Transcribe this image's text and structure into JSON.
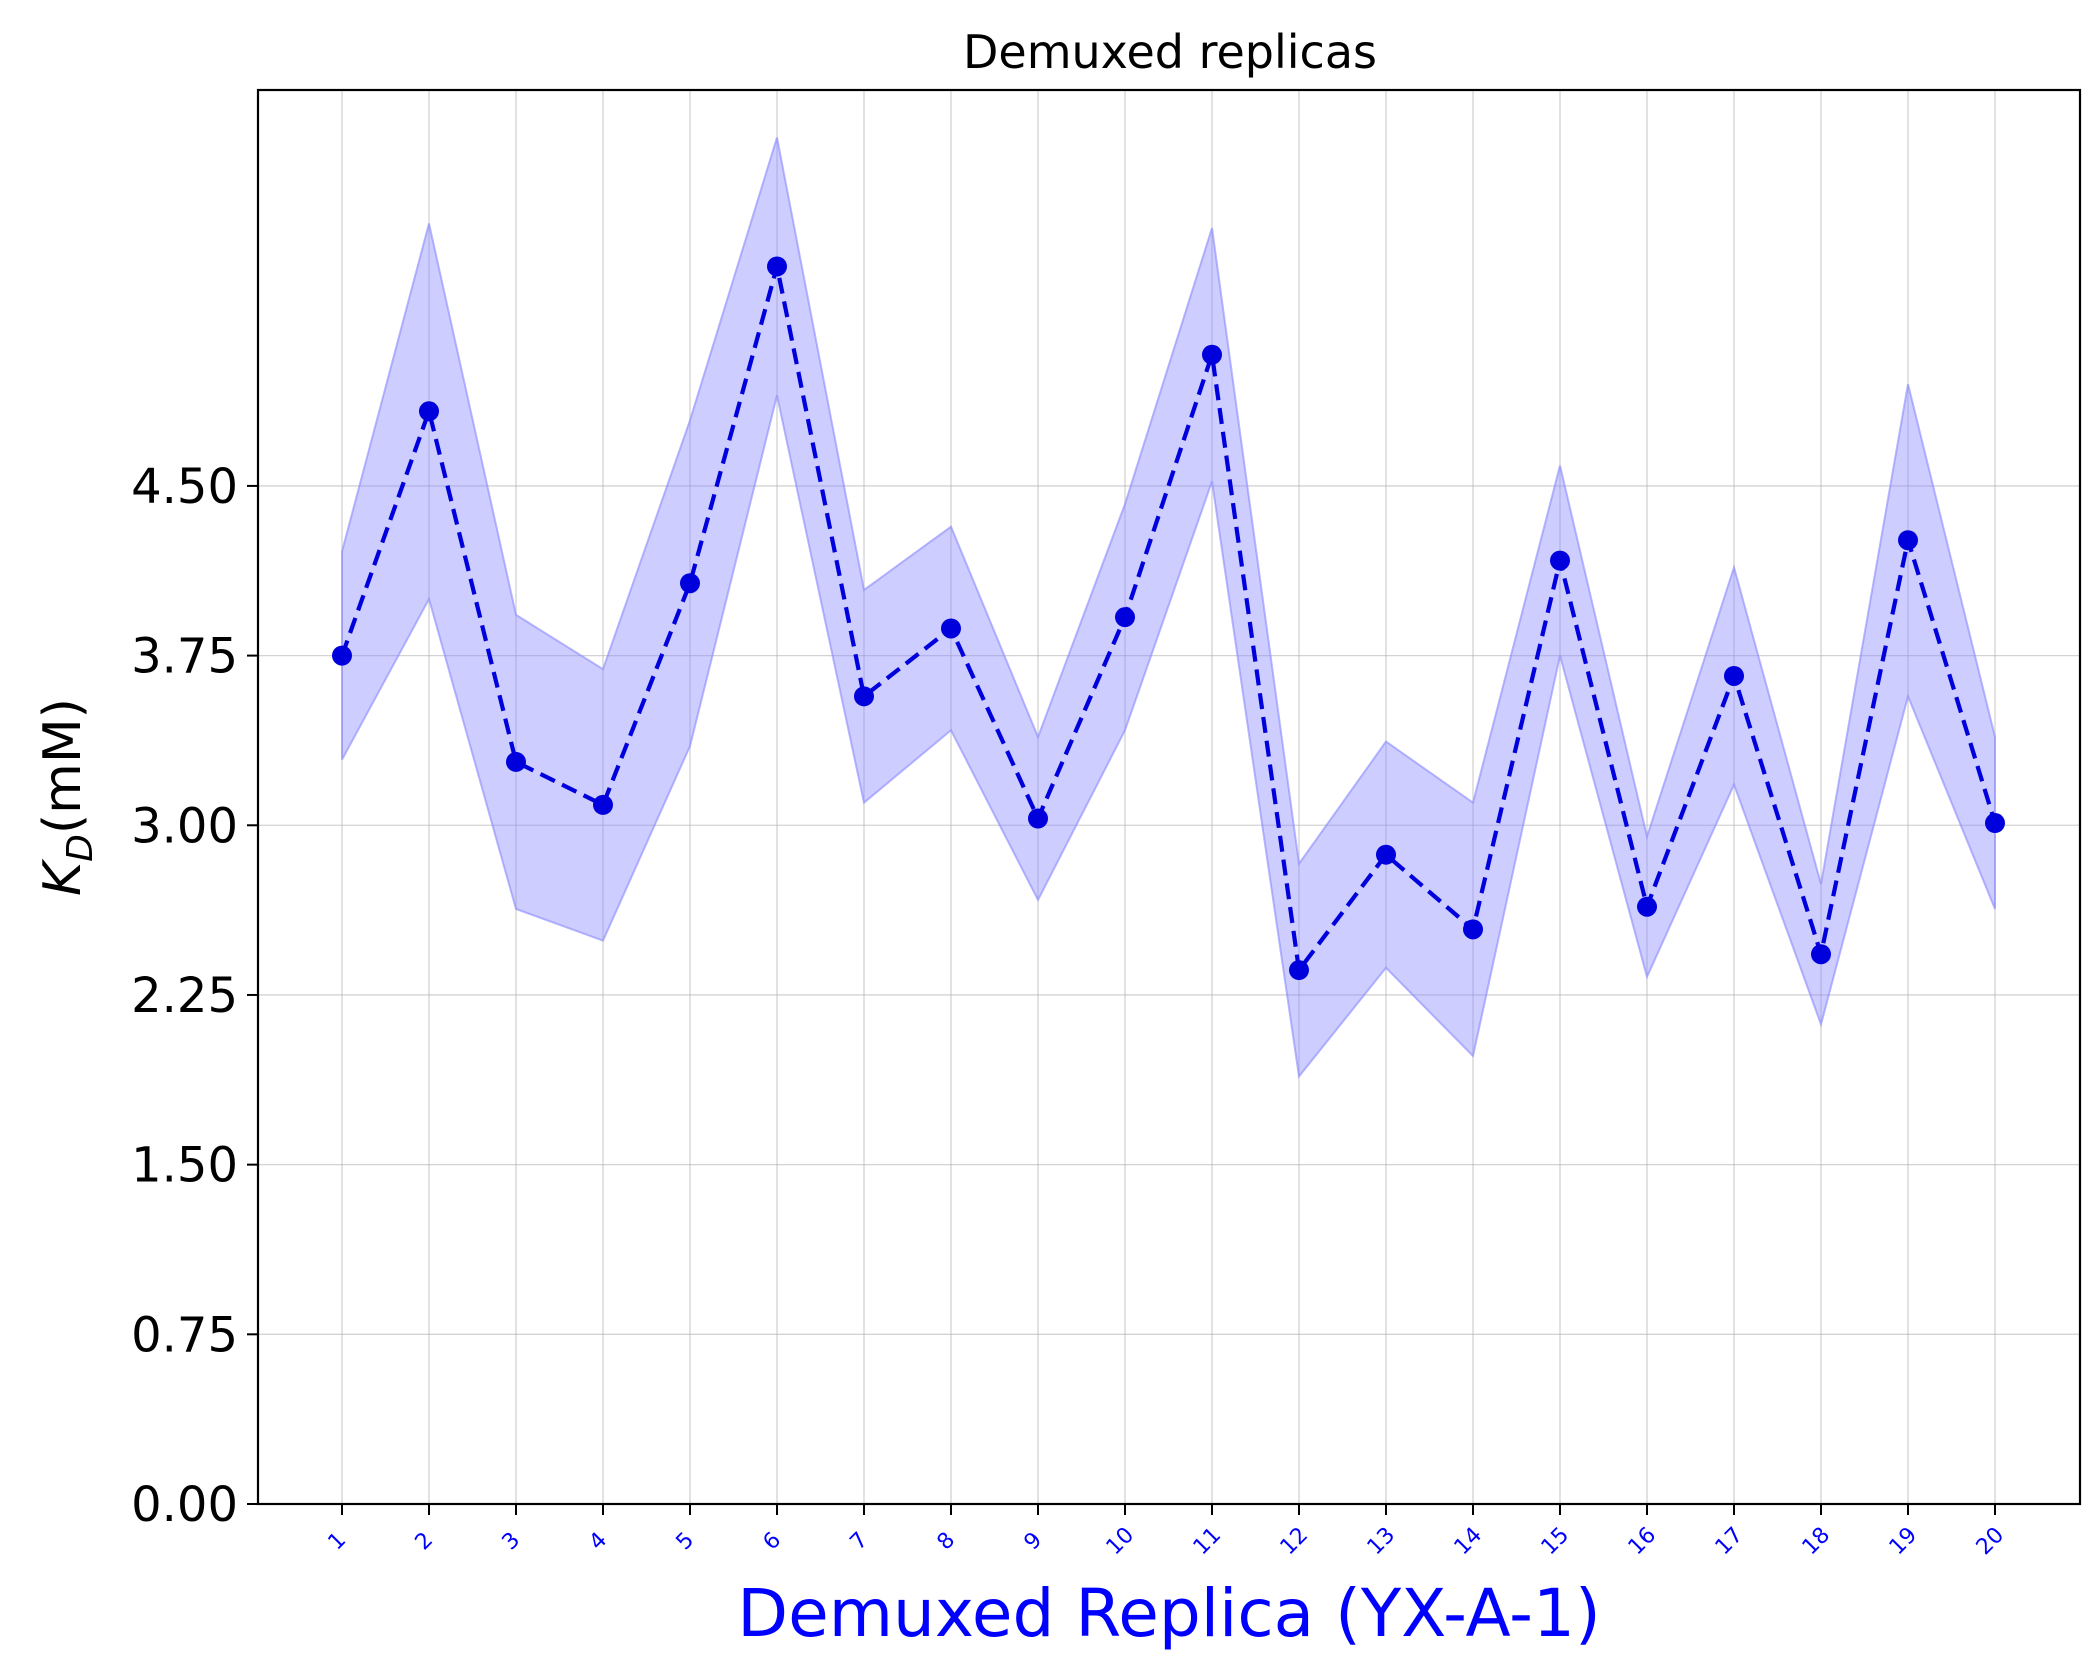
{
  "chart_data": {
    "type": "line",
    "title": "Demuxed replicas",
    "xlabel": "Demuxed Replica (YX-A-1)",
    "ylabel": {
      "main": "K",
      "sub": "D",
      "unit": "(mM)"
    },
    "categories": [
      "1",
      "2",
      "3",
      "4",
      "5",
      "6",
      "7",
      "8",
      "9",
      "10",
      "11",
      "12",
      "13",
      "14",
      "15",
      "16",
      "17",
      "18",
      "19",
      "20"
    ],
    "series": [
      {
        "values": [
          3.75,
          4.83,
          3.28,
          3.09,
          4.07,
          5.47,
          3.57,
          3.87,
          3.03,
          3.92,
          5.08,
          2.36,
          2.87,
          2.54,
          4.17,
          2.64,
          3.66,
          2.43,
          4.26,
          3.01
        ],
        "lower": [
          3.29,
          4.0,
          2.63,
          2.49,
          3.35,
          4.9,
          3.1,
          3.42,
          2.67,
          3.42,
          4.52,
          1.89,
          2.37,
          1.98,
          3.75,
          2.33,
          3.18,
          2.12,
          3.57,
          2.63
        ],
        "upper": [
          4.21,
          5.66,
          3.93,
          3.69,
          4.79,
          6.04,
          4.04,
          4.32,
          3.39,
          4.42,
          5.64,
          2.83,
          3.37,
          3.1,
          4.59,
          2.95,
          4.14,
          2.74,
          4.95,
          3.39
        ]
      }
    ],
    "yticks": [
      "0.00",
      "0.75",
      "1.50",
      "2.25",
      "3.00",
      "3.75",
      "4.50"
    ],
    "ylim": [
      0,
      6.25
    ],
    "grid": true,
    "colors": {
      "line": "#0000dd",
      "fill": "#8888ff",
      "xlabel": "#0000ff"
    }
  }
}
